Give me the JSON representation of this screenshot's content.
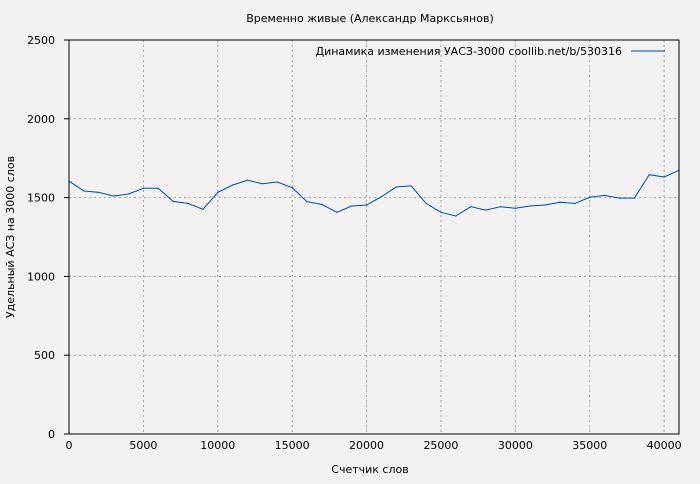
{
  "chart_data": {
    "type": "line",
    "title": "Временно живые (Александр Марксьянов)",
    "xlabel": "Счетчик слов",
    "ylabel": "Удельный АСЗ на 3000 слов",
    "xlim": [
      0,
      41000
    ],
    "ylim": [
      0,
      2500
    ],
    "xticks": [
      0,
      5000,
      10000,
      15000,
      20000,
      25000,
      30000,
      35000,
      40000
    ],
    "yticks": [
      0,
      500,
      1000,
      1500,
      2000,
      2500
    ],
    "grid": true,
    "legend_position": "top-right",
    "series": [
      {
        "name": "Динамика изменения УАСЗ-3000  coollib.net/b/530316",
        "color": "#0047b3",
        "x": [
          0,
          1000,
          2000,
          3000,
          4000,
          5000,
          6000,
          7000,
          8000,
          9000,
          10000,
          11000,
          12000,
          13000,
          14000,
          15000,
          16000,
          17000,
          18000,
          19000,
          20000,
          21000,
          22000,
          23000,
          24000,
          25000,
          26000,
          27000,
          28000,
          29000,
          30000,
          31000,
          32000,
          33000,
          34000,
          35000,
          36000,
          37000,
          38000,
          39000,
          40000,
          41000
        ],
        "y": [
          1605,
          1542,
          1533,
          1510,
          1523,
          1559,
          1559,
          1476,
          1463,
          1426,
          1533,
          1580,
          1610,
          1588,
          1599,
          1563,
          1474,
          1457,
          1407,
          1447,
          1453,
          1506,
          1567,
          1574,
          1463,
          1407,
          1383,
          1442,
          1421,
          1442,
          1432,
          1447,
          1453,
          1470,
          1463,
          1502,
          1514,
          1497,
          1497,
          1645,
          1631,
          1673
        ]
      }
    ]
  }
}
